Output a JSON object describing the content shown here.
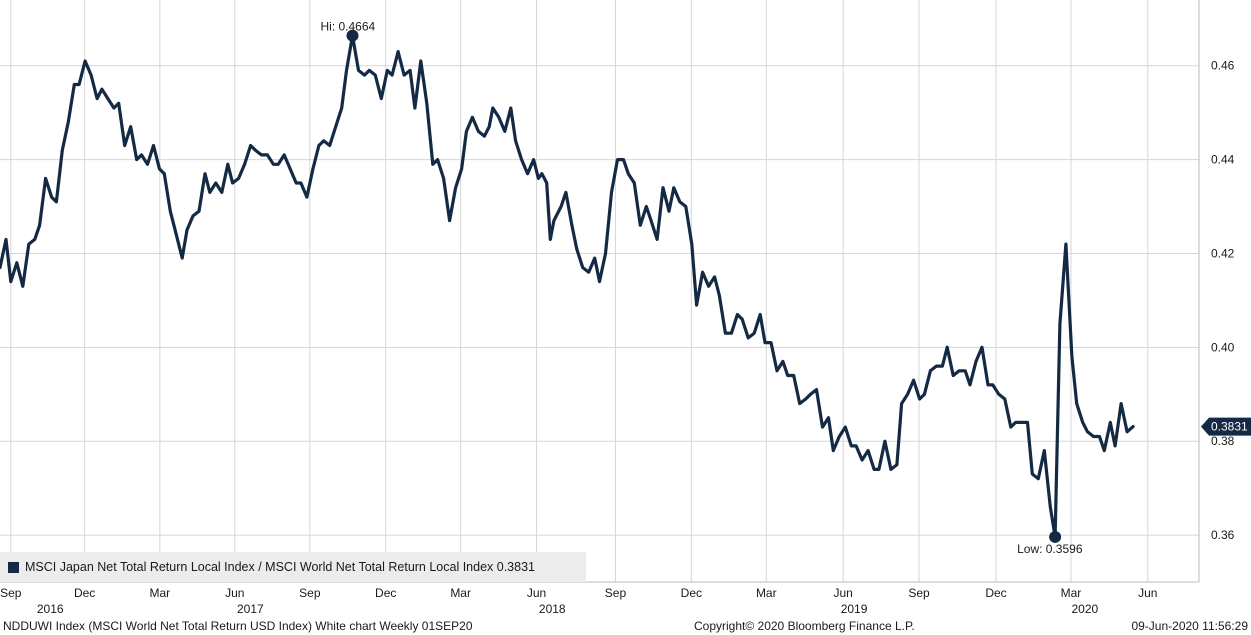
{
  "chart_data": {
    "type": "line",
    "title": "",
    "xlabel": "",
    "ylabel": "",
    "ylim": [
      0.35,
      0.474
    ],
    "xlim": [
      0,
      1
    ],
    "grid": true,
    "color": "#142a44",
    "y_ticks": [
      0.36,
      0.38,
      0.4,
      0.42,
      0.44,
      0.46
    ],
    "y_tick_labels": [
      "0.36",
      "0.38",
      "0.40",
      "0.42",
      "0.44",
      "0.46"
    ],
    "month_ticks": [
      {
        "label": "Sep",
        "x": 0.009
      },
      {
        "label": "Dec",
        "x": 0.0706
      },
      {
        "label": "Mar",
        "x": 0.1333
      },
      {
        "label": "Jun",
        "x": 0.1958
      },
      {
        "label": "Sep",
        "x": 0.2584
      },
      {
        "label": "Dec",
        "x": 0.3217
      },
      {
        "label": "Mar",
        "x": 0.3842
      },
      {
        "label": "Jun",
        "x": 0.4475
      },
      {
        "label": "Sep",
        "x": 0.5133
      },
      {
        "label": "Dec",
        "x": 0.5766
      },
      {
        "label": "Mar",
        "x": 0.6391
      },
      {
        "label": "Jun",
        "x": 0.7032
      },
      {
        "label": "Sep",
        "x": 0.7665
      },
      {
        "label": "Dec",
        "x": 0.8307
      },
      {
        "label": "Mar",
        "x": 0.8932
      },
      {
        "label": "Jun",
        "x": 0.9573
      }
    ],
    "year_ticks": [
      {
        "label": "2016",
        "x": 0.0419
      },
      {
        "label": "2017",
        "x": 0.2088
      },
      {
        "label": "2018",
        "x": 0.4606
      },
      {
        "label": "2019",
        "x": 0.7123
      },
      {
        "label": "2020",
        "x": 0.9048
      }
    ],
    "series": [
      {
        "name": "MSCI Japan Net Total Return Local Index / MSCI World Net Total Return Local Index",
        "points": [
          [
            0.0,
            0.417
          ],
          [
            0.005,
            0.423
          ],
          [
            0.009,
            0.414
          ],
          [
            0.014,
            0.418
          ],
          [
            0.019,
            0.413
          ],
          [
            0.024,
            0.422
          ],
          [
            0.029,
            0.423
          ],
          [
            0.033,
            0.426
          ],
          [
            0.038,
            0.436
          ],
          [
            0.043,
            0.432
          ],
          [
            0.047,
            0.431
          ],
          [
            0.052,
            0.442
          ],
          [
            0.057,
            0.448
          ],
          [
            0.062,
            0.456
          ],
          [
            0.066,
            0.456
          ],
          [
            0.071,
            0.461
          ],
          [
            0.076,
            0.458
          ],
          [
            0.081,
            0.453
          ],
          [
            0.085,
            0.455
          ],
          [
            0.09,
            0.453
          ],
          [
            0.095,
            0.451
          ],
          [
            0.099,
            0.452
          ],
          [
            0.104,
            0.443
          ],
          [
            0.109,
            0.447
          ],
          [
            0.114,
            0.44
          ],
          [
            0.118,
            0.441
          ],
          [
            0.123,
            0.439
          ],
          [
            0.128,
            0.443
          ],
          [
            0.133,
            0.438
          ],
          [
            0.137,
            0.437
          ],
          [
            0.142,
            0.429
          ],
          [
            0.147,
            0.424
          ],
          [
            0.152,
            0.419
          ],
          [
            0.156,
            0.425
          ],
          [
            0.161,
            0.428
          ],
          [
            0.166,
            0.429
          ],
          [
            0.171,
            0.437
          ],
          [
            0.175,
            0.433
          ],
          [
            0.18,
            0.435
          ],
          [
            0.185,
            0.433
          ],
          [
            0.19,
            0.439
          ],
          [
            0.194,
            0.435
          ],
          [
            0.199,
            0.436
          ],
          [
            0.204,
            0.439
          ],
          [
            0.209,
            0.443
          ],
          [
            0.213,
            0.442
          ],
          [
            0.218,
            0.441
          ],
          [
            0.223,
            0.441
          ],
          [
            0.228,
            0.439
          ],
          [
            0.232,
            0.439
          ],
          [
            0.237,
            0.441
          ],
          [
            0.242,
            0.438
          ],
          [
            0.247,
            0.435
          ],
          [
            0.251,
            0.435
          ],
          [
            0.256,
            0.432
          ],
          [
            0.261,
            0.438
          ],
          [
            0.266,
            0.443
          ],
          [
            0.27,
            0.444
          ],
          [
            0.275,
            0.443
          ],
          [
            0.28,
            0.447
          ],
          [
            0.285,
            0.451
          ],
          [
            0.289,
            0.459
          ],
          [
            0.294,
            0.4664
          ],
          [
            0.299,
            0.459
          ],
          [
            0.304,
            0.458
          ],
          [
            0.308,
            0.459
          ],
          [
            0.313,
            0.458
          ],
          [
            0.318,
            0.453
          ],
          [
            0.323,
            0.459
          ],
          [
            0.327,
            0.458
          ],
          [
            0.332,
            0.463
          ],
          [
            0.337,
            0.458
          ],
          [
            0.342,
            0.459
          ],
          [
            0.346,
            0.451
          ],
          [
            0.351,
            0.461
          ],
          [
            0.356,
            0.452
          ],
          [
            0.361,
            0.439
          ],
          [
            0.365,
            0.44
          ],
          [
            0.37,
            0.436
          ],
          [
            0.375,
            0.427
          ],
          [
            0.38,
            0.434
          ],
          [
            0.385,
            0.438
          ],
          [
            0.389,
            0.446
          ],
          [
            0.394,
            0.449
          ],
          [
            0.399,
            0.446
          ],
          [
            0.404,
            0.445
          ],
          [
            0.408,
            0.447
          ],
          [
            0.411,
            0.451
          ],
          [
            0.416,
            0.449
          ],
          [
            0.421,
            0.446
          ],
          [
            0.426,
            0.451
          ],
          [
            0.43,
            0.444
          ],
          [
            0.435,
            0.44
          ],
          [
            0.44,
            0.437
          ],
          [
            0.445,
            0.44
          ],
          [
            0.449,
            0.436
          ],
          [
            0.452,
            0.437
          ],
          [
            0.456,
            0.435
          ],
          [
            0.459,
            0.423
          ],
          [
            0.462,
            0.427
          ],
          [
            0.468,
            0.43
          ],
          [
            0.472,
            0.433
          ],
          [
            0.477,
            0.426
          ],
          [
            0.481,
            0.421
          ],
          [
            0.486,
            0.417
          ],
          [
            0.491,
            0.416
          ],
          [
            0.496,
            0.419
          ],
          [
            0.5,
            0.414
          ],
          [
            0.505,
            0.42
          ],
          [
            0.51,
            0.433
          ],
          [
            0.515,
            0.44
          ],
          [
            0.52,
            0.44
          ],
          [
            0.524,
            0.437
          ],
          [
            0.529,
            0.435
          ],
          [
            0.534,
            0.426
          ],
          [
            0.539,
            0.43
          ],
          [
            0.543,
            0.427
          ],
          [
            0.548,
            0.423
          ],
          [
            0.553,
            0.434
          ],
          [
            0.558,
            0.429
          ],
          [
            0.562,
            0.434
          ],
          [
            0.567,
            0.431
          ],
          [
            0.572,
            0.43
          ],
          [
            0.577,
            0.422
          ],
          [
            0.581,
            0.409
          ],
          [
            0.586,
            0.416
          ],
          [
            0.591,
            0.413
          ],
          [
            0.596,
            0.415
          ],
          [
            0.6,
            0.411
          ],
          [
            0.605,
            0.403
          ],
          [
            0.61,
            0.403
          ],
          [
            0.615,
            0.407
          ],
          [
            0.619,
            0.406
          ],
          [
            0.624,
            0.402
          ],
          [
            0.629,
            0.403
          ],
          [
            0.634,
            0.407
          ],
          [
            0.638,
            0.401
          ],
          [
            0.643,
            0.401
          ],
          [
            0.648,
            0.395
          ],
          [
            0.653,
            0.397
          ],
          [
            0.657,
            0.394
          ],
          [
            0.662,
            0.394
          ],
          [
            0.667,
            0.388
          ],
          [
            0.672,
            0.389
          ],
          [
            0.676,
            0.39
          ],
          [
            0.681,
            0.391
          ],
          [
            0.686,
            0.383
          ],
          [
            0.691,
            0.385
          ],
          [
            0.695,
            0.378
          ],
          [
            0.7,
            0.381
          ],
          [
            0.705,
            0.383
          ],
          [
            0.71,
            0.379
          ],
          [
            0.714,
            0.379
          ],
          [
            0.719,
            0.376
          ],
          [
            0.724,
            0.378
          ],
          [
            0.729,
            0.374
          ],
          [
            0.733,
            0.374
          ],
          [
            0.738,
            0.38
          ],
          [
            0.743,
            0.374
          ],
          [
            0.748,
            0.375
          ],
          [
            0.752,
            0.388
          ],
          [
            0.757,
            0.39
          ],
          [
            0.762,
            0.393
          ],
          [
            0.767,
            0.389
          ],
          [
            0.771,
            0.39
          ],
          [
            0.776,
            0.395
          ],
          [
            0.781,
            0.396
          ],
          [
            0.786,
            0.396
          ],
          [
            0.79,
            0.4
          ],
          [
            0.795,
            0.394
          ],
          [
            0.8,
            0.395
          ],
          [
            0.805,
            0.395
          ],
          [
            0.809,
            0.392
          ],
          [
            0.814,
            0.397
          ],
          [
            0.819,
            0.4
          ],
          [
            0.824,
            0.392
          ],
          [
            0.828,
            0.392
          ],
          [
            0.833,
            0.39
          ],
          [
            0.838,
            0.389
          ],
          [
            0.843,
            0.383
          ],
          [
            0.847,
            0.384
          ],
          [
            0.852,
            0.384
          ],
          [
            0.857,
            0.384
          ],
          [
            0.861,
            0.373
          ],
          [
            0.866,
            0.372
          ],
          [
            0.871,
            0.378
          ],
          [
            0.876,
            0.366
          ],
          [
            0.88,
            0.3596
          ],
          [
            0.884,
            0.405
          ],
          [
            0.889,
            0.422
          ],
          [
            0.894,
            0.398
          ],
          [
            0.898,
            0.388
          ],
          [
            0.903,
            0.384
          ],
          [
            0.907,
            0.382
          ],
          [
            0.912,
            0.381
          ],
          [
            0.917,
            0.381
          ],
          [
            0.921,
            0.378
          ],
          [
            0.926,
            0.384
          ],
          [
            0.93,
            0.379
          ],
          [
            0.935,
            0.388
          ],
          [
            0.94,
            0.382
          ],
          [
            0.945,
            0.3831
          ]
        ]
      }
    ],
    "hi_label": "Hi: 0.4664",
    "low_label": "Low: 0.3596",
    "last_value_label": "0.3831"
  },
  "legend": {
    "text": "MSCI Japan Net Total Return Local Index / MSCI World Net Total Return Local Index 0.3831"
  },
  "footer": {
    "left": "NDDUWI Index (MSCI World Net Total Return USD Index) White chart  Weekly 01SEP20",
    "center": "Copyright© 2020 Bloomberg Finance L.P.",
    "right": "09-Jun-2020 11:56:29"
  }
}
